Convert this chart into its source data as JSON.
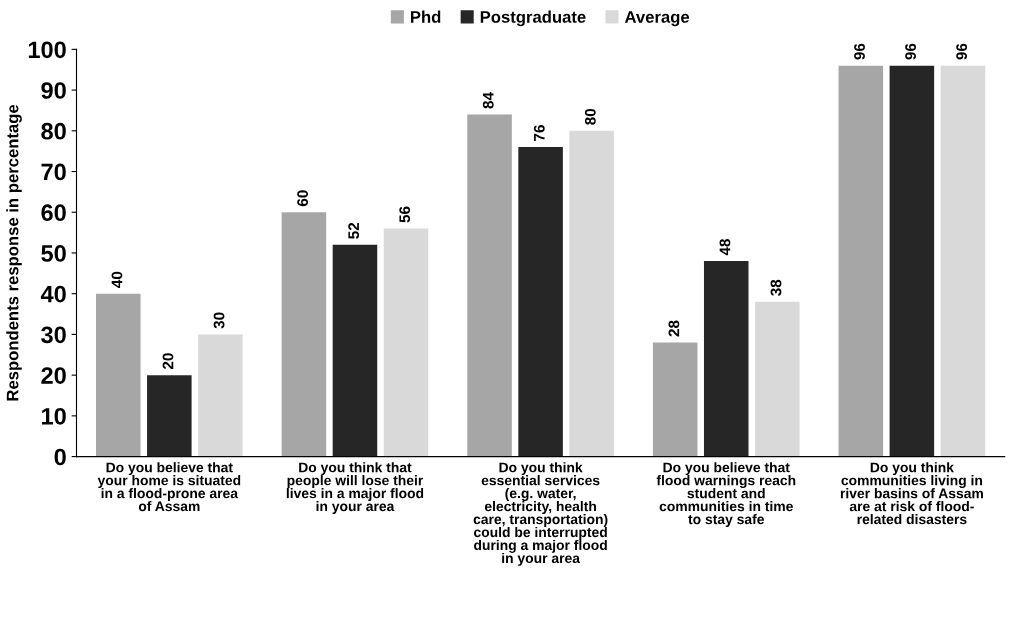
{
  "chart_data": {
    "type": "bar",
    "ylabel": "Respondents response in percentage",
    "categories": [
      "Do you believe that\nyour home is situated\nin a flood-prone area\nof Assam",
      "Do you think that\npeople will lose their\nlives in a major flood\nin your area",
      "Do you think\nessential services\n(e.g. water,\nelectricity, health\ncare, transportation)\ncould be interrupted\nduring a major flood\nin your area",
      "Do you believe that\nflood warnings reach\nstudent and\ncommunities in time\nto stay safe",
      "Do you think\ncommunities living in\nriver basins of Assam\nare at risk of flood-\nrelated disasters"
    ],
    "series": [
      {
        "name": "Phd",
        "color": "#a6a6a6",
        "values": [
          40,
          60,
          84,
          28,
          96
        ]
      },
      {
        "name": "Postgraduate",
        "color": "#262626",
        "values": [
          20,
          52,
          76,
          48,
          96
        ]
      },
      {
        "name": "Average",
        "color": "#d9d9d9",
        "values": [
          30,
          56,
          80,
          38,
          96
        ]
      }
    ],
    "ylim": [
      0,
      100
    ],
    "yticks": [
      0,
      10,
      20,
      30,
      40,
      50,
      60,
      70,
      80,
      90,
      100
    ],
    "data_labels": true,
    "grid": false,
    "legend": "top"
  }
}
